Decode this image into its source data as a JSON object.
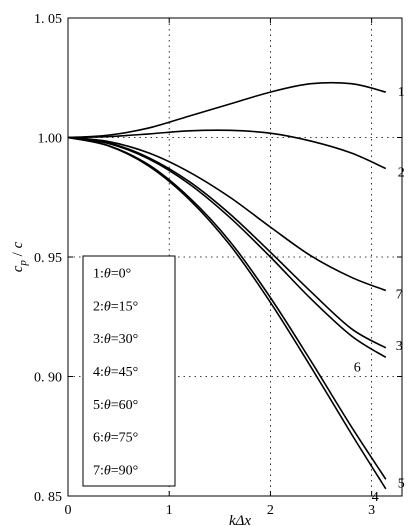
{
  "chart_data": {
    "type": "line",
    "xlabel": "kΔx",
    "ylabel": "c_p / c",
    "xlim": [
      0,
      3.3
    ],
    "ylim": [
      0.85,
      1.05
    ],
    "xticks": [
      "0",
      "1",
      "2",
      "3"
    ],
    "xtick_values": [
      0,
      1,
      2,
      3
    ],
    "yticks": [
      "0. 85",
      "0. 90",
      "0. 95",
      "1.00",
      "1. 05"
    ],
    "ytick_values": [
      0.85,
      0.9,
      0.95,
      1.0,
      1.05
    ],
    "grid": true,
    "legend": {
      "placement": "lower-left",
      "entries": [
        "1:θ=0°",
        "2:θ=15°",
        "3:θ=30°",
        "4:θ=45°",
        "5:θ=60°",
        "6:θ=75°",
        "7:θ=90°"
      ]
    },
    "series": [
      {
        "name": "1:θ=0°",
        "end_label": "1",
        "x": [
          0,
          0.4,
          0.8,
          1.2,
          1.6,
          2.0,
          2.4,
          2.8,
          3.14
        ],
        "y": [
          1.0,
          1.001,
          1.004,
          1.009,
          1.014,
          1.019,
          1.0225,
          1.0225,
          1.019
        ]
      },
      {
        "name": "2:θ=15°",
        "end_label": "2",
        "x": [
          0,
          0.4,
          0.8,
          1.2,
          1.6,
          2.0,
          2.4,
          2.8,
          3.14
        ],
        "y": [
          1.0,
          1.0004,
          1.0015,
          1.0028,
          1.003,
          1.0018,
          0.9985,
          0.9935,
          0.987
        ]
      },
      {
        "name": "3:θ=30°",
        "end_label": "3",
        "x": [
          0,
          0.4,
          0.8,
          1.2,
          1.6,
          2.0,
          2.4,
          2.8,
          3.14
        ],
        "y": [
          1.0,
          0.9978,
          0.9915,
          0.9815,
          0.968,
          0.952,
          0.9355,
          0.92,
          0.912
        ]
      },
      {
        "name": "4:θ=45°",
        "end_label": "4",
        "x": [
          0,
          0.4,
          0.8,
          1.2,
          1.6,
          2.0,
          2.4,
          2.8,
          3.14
        ],
        "y": [
          1.0,
          0.9965,
          0.988,
          0.974,
          0.955,
          0.931,
          0.904,
          0.876,
          0.853
        ]
      },
      {
        "name": "5:θ=60°",
        "end_label": "5",
        "x": [
          0,
          0.4,
          0.8,
          1.2,
          1.6,
          2.0,
          2.4,
          2.8,
          3.14
        ],
        "y": [
          1.0,
          0.9966,
          0.9885,
          0.9748,
          0.9565,
          0.933,
          0.9065,
          0.879,
          0.857
        ]
      },
      {
        "name": "6:θ=75°",
        "end_label": "6",
        "x": [
          0,
          0.4,
          0.8,
          1.2,
          1.6,
          2.0,
          2.4,
          2.8,
          3.14
        ],
        "y": [
          1.0,
          0.9975,
          0.991,
          0.9805,
          0.9665,
          0.95,
          0.9325,
          0.917,
          0.908
        ]
      },
      {
        "name": "7:θ=90°",
        "end_label": "7",
        "x": [
          0,
          0.4,
          0.8,
          1.2,
          1.6,
          2.0,
          2.4,
          2.8,
          3.14
        ],
        "y": [
          1.0,
          0.9983,
          0.9935,
          0.9855,
          0.975,
          0.9625,
          0.9505,
          0.9415,
          0.936
        ]
      }
    ]
  }
}
